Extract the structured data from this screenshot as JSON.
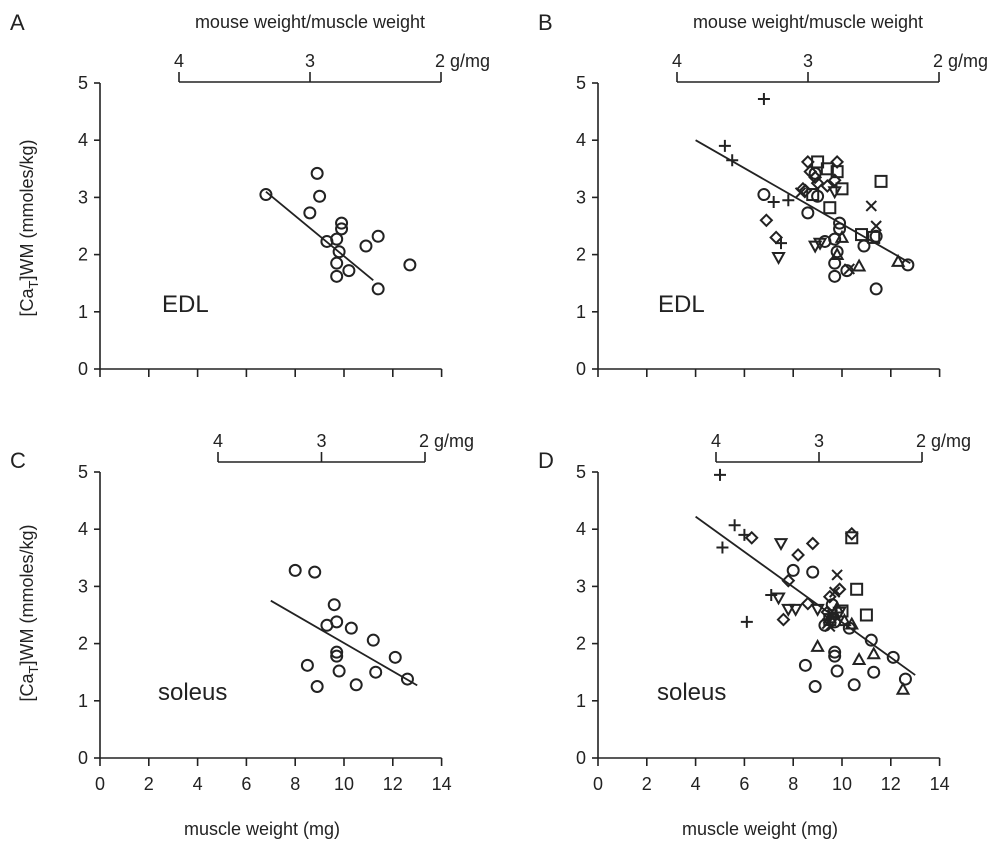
{
  "figure": {
    "shared_ylabel": "[CaT]WM (mmoles/kg)",
    "ylabel_parts": {
      "pre": "[Ca",
      "sub": "T",
      "post": "]WM (mmoles/kg)"
    },
    "shared_xlabel": "muscle weight (mg)",
    "top_axis_title": "mouse weight/muscle weight",
    "top_axis_unit": "g/mg"
  },
  "chart_data": [
    {
      "panel": "A",
      "type": "scatter",
      "muscle_label": "EDL",
      "top_axis_title": "mouse weight/muscle weight",
      "top_axis_ticks": [
        "4",
        "3",
        "2 g/mg"
      ],
      "top_axis_ratio_range": [
        4,
        2
      ],
      "xlim": [
        0,
        14
      ],
      "ylim": [
        0,
        5
      ],
      "x_ticks": [],
      "y_ticks": [
        "0",
        "1",
        "2",
        "3",
        "4",
        "5"
      ],
      "series": [
        {
          "marker": "circle",
          "points": [
            [
              6.8,
              3.05
            ],
            [
              8.6,
              2.73
            ],
            [
              8.9,
              3.42
            ],
            [
              9.0,
              3.02
            ],
            [
              9.3,
              2.23
            ],
            [
              9.7,
              2.27
            ],
            [
              9.8,
              2.05
            ],
            [
              9.7,
              1.85
            ],
            [
              9.7,
              1.62
            ],
            [
              9.9,
              2.55
            ],
            [
              9.9,
              2.45
            ],
            [
              10.2,
              1.72
            ],
            [
              10.9,
              2.15
            ],
            [
              11.4,
              2.32
            ],
            [
              11.4,
              1.4
            ],
            [
              12.7,
              1.82
            ]
          ]
        }
      ],
      "fit_line": [
        [
          6.8,
          3.1
        ],
        [
          11.2,
          1.55
        ]
      ]
    },
    {
      "panel": "B",
      "type": "scatter",
      "muscle_label": "EDL",
      "top_axis_title": "mouse weight/muscle weight",
      "top_axis_ticks": [
        "4",
        "3",
        "2 g/mg"
      ],
      "top_axis_ratio_range": [
        4,
        2
      ],
      "xlim": [
        0,
        14
      ],
      "ylim": [
        0,
        5
      ],
      "x_ticks": [],
      "y_ticks": [
        "0",
        "1",
        "2",
        "3",
        "4",
        "5"
      ],
      "series": [
        {
          "marker": "circle",
          "points": [
            [
              6.8,
              3.05
            ],
            [
              8.6,
              2.73
            ],
            [
              8.9,
              3.42
            ],
            [
              9.0,
              3.02
            ],
            [
              9.3,
              2.23
            ],
            [
              9.7,
              2.27
            ],
            [
              9.8,
              2.05
            ],
            [
              9.7,
              1.85
            ],
            [
              9.7,
              1.62
            ],
            [
              9.9,
              2.55
            ],
            [
              9.9,
              2.45
            ],
            [
              10.2,
              1.72
            ],
            [
              10.9,
              2.15
            ],
            [
              11.4,
              2.32
            ],
            [
              11.4,
              1.4
            ],
            [
              12.7,
              1.82
            ]
          ]
        },
        {
          "marker": "plus",
          "points": [
            [
              5.2,
              3.9
            ],
            [
              5.5,
              3.65
            ],
            [
              6.8,
              4.72
            ],
            [
              7.2,
              2.92
            ],
            [
              7.8,
              2.95
            ],
            [
              7.5,
              2.2
            ]
          ]
        },
        {
          "marker": "diamond",
          "points": [
            [
              6.9,
              2.6
            ],
            [
              7.3,
              2.3
            ],
            [
              8.4,
              3.15
            ],
            [
              8.5,
              3.12
            ],
            [
              8.6,
              3.62
            ],
            [
              8.7,
              3.45
            ],
            [
              8.9,
              3.35
            ],
            [
              9.4,
              3.2
            ],
            [
              9.7,
              3.3
            ],
            [
              9.8,
              3.62
            ],
            [
              9.0,
              3.25
            ]
          ]
        },
        {
          "marker": "square",
          "points": [
            [
              8.8,
              3.05
            ],
            [
              9.0,
              3.62
            ],
            [
              9.4,
              3.5
            ],
            [
              9.8,
              3.45
            ],
            [
              10.0,
              3.15
            ],
            [
              9.5,
              2.82
            ],
            [
              10.8,
              2.35
            ],
            [
              11.6,
              3.28
            ],
            [
              11.3,
              2.3
            ]
          ]
        },
        {
          "marker": "triangle-down",
          "points": [
            [
              7.4,
              1.95
            ],
            [
              8.9,
              2.15
            ],
            [
              9.1,
              2.2
            ],
            [
              9.7,
              3.1
            ]
          ]
        },
        {
          "marker": "triangle-up",
          "points": [
            [
              9.8,
              2.0
            ],
            [
              10.0,
              2.3
            ],
            [
              10.7,
              1.8
            ],
            [
              12.3,
              1.88
            ]
          ]
        },
        {
          "marker": "x",
          "points": [
            [
              8.3,
              3.08
            ],
            [
              10.3,
              1.75
            ],
            [
              11.2,
              2.85
            ],
            [
              11.4,
              2.5
            ]
          ]
        }
      ],
      "fit_line": [
        [
          4.0,
          4.0
        ],
        [
          12.8,
          1.85
        ]
      ]
    },
    {
      "panel": "C",
      "type": "scatter",
      "muscle_label": "soleus",
      "top_axis_title": "",
      "top_axis_ticks": [
        "4",
        "3",
        "2 g/mg"
      ],
      "top_axis_ratio_range": [
        4,
        2
      ],
      "xlim": [
        0,
        14
      ],
      "ylim": [
        0,
        5
      ],
      "x_ticks": [
        "0",
        "2",
        "4",
        "6",
        "8",
        "10",
        "12",
        "14"
      ],
      "y_ticks": [
        "0",
        "1",
        "2",
        "3",
        "4",
        "5"
      ],
      "series": [
        {
          "marker": "circle",
          "points": [
            [
              8.0,
              3.28
            ],
            [
              8.8,
              3.25
            ],
            [
              8.5,
              1.62
            ],
            [
              8.9,
              1.25
            ],
            [
              9.3,
              2.32
            ],
            [
              9.6,
              2.68
            ],
            [
              9.7,
              2.38
            ],
            [
              9.7,
              1.85
            ],
            [
              9.7,
              1.78
            ],
            [
              9.8,
              1.52
            ],
            [
              10.3,
              2.27
            ],
            [
              10.5,
              1.28
            ],
            [
              11.2,
              2.06
            ],
            [
              11.3,
              1.5
            ],
            [
              12.1,
              1.76
            ],
            [
              12.6,
              1.38
            ]
          ]
        }
      ],
      "fit_line": [
        [
          7.0,
          2.75
        ],
        [
          13.0,
          1.27
        ]
      ]
    },
    {
      "panel": "D",
      "type": "scatter",
      "muscle_label": "soleus",
      "top_axis_title": "",
      "top_axis_ticks": [
        "4",
        "3",
        "2 g/mg"
      ],
      "top_axis_ratio_range": [
        4,
        2
      ],
      "xlim": [
        0,
        14
      ],
      "ylim": [
        0,
        5
      ],
      "x_ticks": [
        "0",
        "2",
        "4",
        "6",
        "8",
        "10",
        "12",
        "14"
      ],
      "y_ticks": [
        "0",
        "1",
        "2",
        "3",
        "4",
        "5"
      ],
      "series": [
        {
          "marker": "circle",
          "points": [
            [
              8.0,
              3.28
            ],
            [
              8.8,
              3.25
            ],
            [
              8.5,
              1.62
            ],
            [
              8.9,
              1.25
            ],
            [
              9.3,
              2.32
            ],
            [
              9.6,
              2.68
            ],
            [
              9.7,
              2.38
            ],
            [
              9.7,
              1.85
            ],
            [
              9.7,
              1.78
            ],
            [
              9.8,
              1.52
            ],
            [
              10.3,
              2.27
            ],
            [
              10.5,
              1.28
            ],
            [
              11.2,
              2.06
            ],
            [
              11.3,
              1.5
            ],
            [
              12.1,
              1.76
            ],
            [
              12.6,
              1.38
            ]
          ]
        },
        {
          "marker": "plus",
          "points": [
            [
              5.0,
              4.95
            ],
            [
              5.6,
              4.07
            ],
            [
              6.0,
              3.9
            ],
            [
              5.1,
              3.68
            ],
            [
              7.1,
              2.85
            ],
            [
              6.1,
              2.38
            ]
          ]
        },
        {
          "marker": "diamond",
          "points": [
            [
              6.3,
              3.85
            ],
            [
              8.2,
              3.55
            ],
            [
              8.8,
              3.75
            ],
            [
              10.4,
              3.92
            ],
            [
              7.8,
              3.1
            ],
            [
              7.6,
              2.42
            ],
            [
              8.6,
              2.7
            ],
            [
              9.5,
              2.82
            ],
            [
              9.9,
              2.95
            ],
            [
              9.4,
              2.55
            ]
          ]
        },
        {
          "marker": "square",
          "points": [
            [
              10.4,
              3.85
            ],
            [
              10.6,
              2.95
            ],
            [
              11.0,
              2.5
            ],
            [
              9.5,
              2.42
            ],
            [
              10.0,
              2.57
            ]
          ]
        },
        {
          "marker": "triangle-down",
          "points": [
            [
              7.5,
              3.75
            ],
            [
              7.4,
              2.8
            ],
            [
              7.8,
              2.6
            ],
            [
              8.1,
              2.6
            ],
            [
              9.0,
              2.6
            ],
            [
              9.9,
              2.55
            ]
          ]
        },
        {
          "marker": "triangle-up",
          "points": [
            [
              9.5,
              2.45
            ],
            [
              10.1,
              2.4
            ],
            [
              10.4,
              2.34
            ],
            [
              9.8,
              2.62
            ],
            [
              11.3,
              1.82
            ],
            [
              12.5,
              1.2
            ],
            [
              10.7,
              1.72
            ],
            [
              9.0,
              1.95
            ]
          ]
        },
        {
          "marker": "x",
          "points": [
            [
              9.8,
              3.2
            ],
            [
              9.7,
              2.9
            ],
            [
              9.6,
              2.5
            ],
            [
              9.4,
              2.35
            ],
            [
              9.5,
              2.3
            ]
          ]
        }
      ],
      "fit_line": [
        [
          4.0,
          4.22
        ],
        [
          13.0,
          1.45
        ]
      ]
    }
  ]
}
